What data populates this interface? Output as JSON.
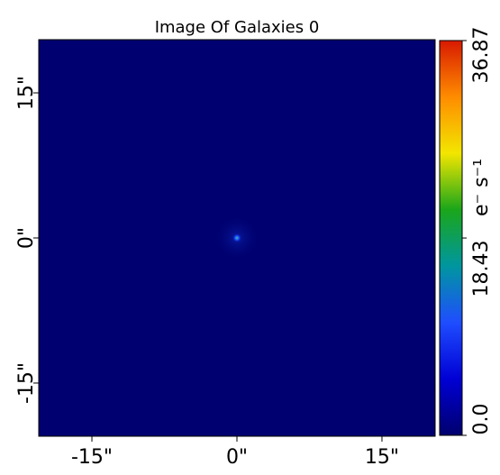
{
  "chart_data": {
    "type": "heatmap",
    "title": "Image Of Galaxies 0",
    "x_ticks": [
      "-15\"",
      "0\"",
      "15\""
    ],
    "y_ticks": [
      "-15\"",
      "0\"",
      "15\""
    ],
    "tick_values": [
      -15,
      0,
      15
    ],
    "xlim": [
      -20.5,
      20.5
    ],
    "ylim": [
      -20.5,
      20.5
    ],
    "source": {
      "x": 0,
      "y": 0,
      "peak": 36.87
    },
    "colorbar": {
      "label": "e⁻ s⁻¹",
      "ticks": [
        "0.0",
        "18.43",
        "36.87"
      ],
      "tick_values": [
        0.0,
        18.43,
        36.87
      ],
      "range": [
        0.0,
        36.87
      ],
      "colormap": [
        "#00006e",
        "#0000d4",
        "#1f4dff",
        "#0096a0",
        "#1aa61a",
        "#f2e600",
        "#ff8c00",
        "#d81a00"
      ]
    },
    "background_color": "#000070"
  }
}
